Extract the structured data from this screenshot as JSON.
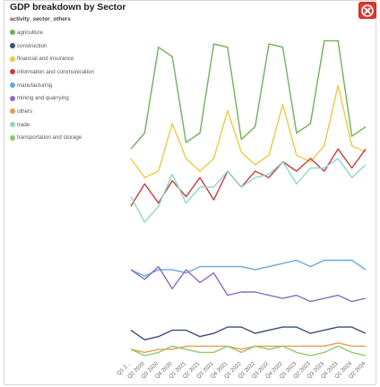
{
  "title": "GDP breakdown by Sector",
  "close_icon": "close-icon",
  "legend": {
    "title": "activity_sector_others"
  },
  "chart_data": {
    "type": "line",
    "title": "GDP breakdown by Sector",
    "legend_title": "activity_sector_others",
    "legend_position": "left",
    "grid": false,
    "ylim": [
      0,
      100
    ],
    "categories": [
      "Q1 2...",
      "Q2 2020",
      "Q3 2020",
      "Q4 2020",
      "Q1 2021",
      "Q2 2021",
      "Q3 2021",
      "Q4 2021",
      "Q1 2022",
      "Q2 2022",
      "Q3 2022",
      "Q4 2022",
      "Q1 2023",
      "Q2 2023",
      "Q3 2023",
      "Q4 2023",
      "Q1 2024",
      "Q2 2024"
    ],
    "series": [
      {
        "name": "agriculture",
        "color": "#72b05a",
        "values": [
          65,
          70,
          97,
          94,
          67,
          70,
          98,
          97,
          68,
          72,
          98,
          97,
          70,
          73,
          99,
          99,
          69,
          72
        ]
      },
      {
        "name": "construction",
        "color": "#3c4a78",
        "values": [
          8,
          5,
          6,
          8,
          8,
          6,
          7,
          9,
          9,
          7,
          8,
          9,
          9,
          7,
          8,
          9,
          9,
          7
        ]
      },
      {
        "name": "financial and insurance",
        "color": "#eec843",
        "values": [
          62,
          56,
          58,
          73,
          62,
          58,
          62,
          77,
          64,
          60,
          63,
          79,
          63,
          61,
          66,
          85,
          66,
          64
        ]
      },
      {
        "name": "information and communication",
        "color": "#c83d3d",
        "values": [
          47,
          54,
          48,
          55,
          50,
          56,
          49,
          58,
          53,
          58,
          56,
          61,
          58,
          62,
          58,
          65,
          59,
          65
        ]
      },
      {
        "name": "manufacturing",
        "color": "#6aa8db",
        "values": [
          27,
          25,
          27,
          27,
          26,
          28,
          28,
          28,
          28,
          27,
          28,
          29,
          30,
          28,
          30,
          30,
          30,
          27
        ]
      },
      {
        "name": "mining and quarrying",
        "color": "#8a6cc4",
        "values": [
          27,
          24,
          28,
          21,
          27,
          23,
          26,
          19,
          20,
          20,
          19,
          18,
          19,
          17,
          18,
          19,
          17,
          18
        ]
      },
      {
        "name": "others",
        "color": "#ef9a53",
        "values": [
          2,
          1,
          2,
          2,
          3,
          3,
          3,
          3,
          2,
          3,
          3,
          3,
          3,
          3,
          3,
          4,
          3,
          3
        ]
      },
      {
        "name": "trade",
        "color": "#8fd9c4",
        "values": [
          50,
          42,
          47,
          57,
          48,
          53,
          53,
          58,
          53,
          56,
          57,
          61,
          54,
          59,
          59,
          62,
          56,
          60
        ]
      },
      {
        "name": "transportation and storage",
        "color": "#8ec96a",
        "values": [
          2,
          0,
          1,
          3,
          2,
          1,
          1,
          3,
          1,
          3,
          2,
          3,
          1,
          0,
          1,
          3,
          1,
          0
        ]
      }
    ]
  }
}
